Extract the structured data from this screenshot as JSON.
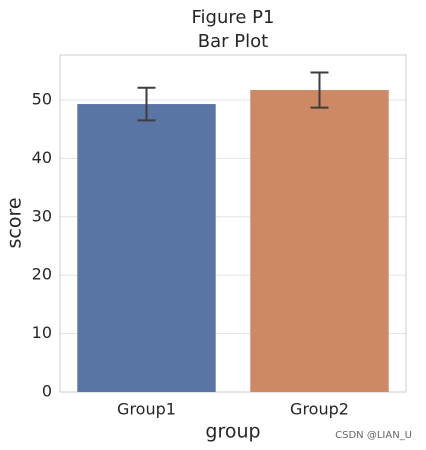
{
  "chart_data": {
    "type": "bar",
    "title": "Figure P1",
    "subtitle": "Bar Plot",
    "x_label": "group",
    "y_label": "score",
    "categories": [
      "Group1",
      "Group2"
    ],
    "values": [
      49.3,
      51.7
    ],
    "errors": [
      2.8,
      3.0
    ],
    "colors": [
      "#5875a4",
      "#cc8963"
    ],
    "ylim": [
      0,
      57.7
    ],
    "yticks": [
      0,
      10,
      20,
      30,
      40,
      50
    ],
    "grid": true
  },
  "watermark": "CSDN @LIAN_U"
}
